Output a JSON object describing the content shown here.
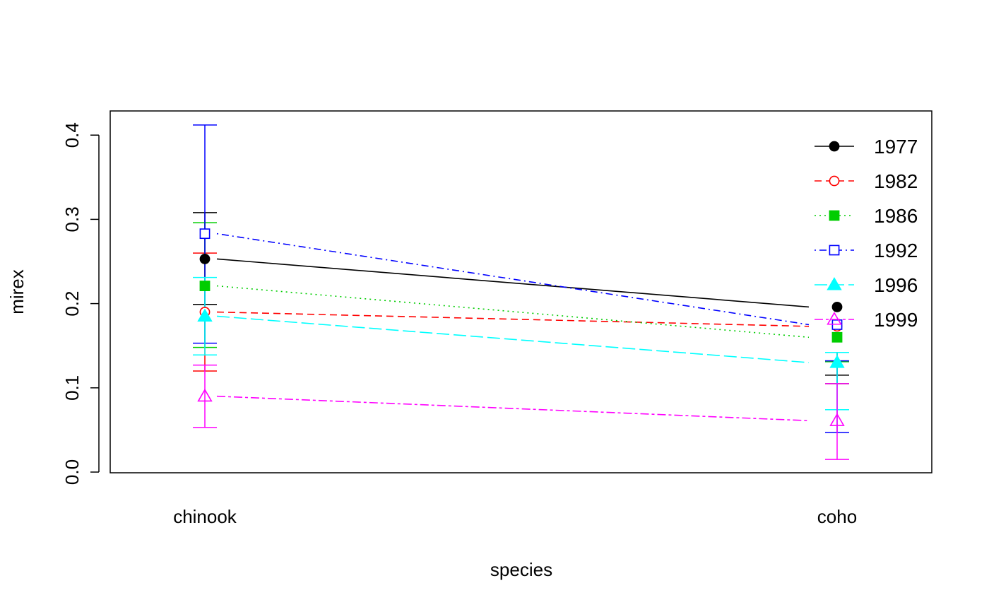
{
  "chart_data": {
    "type": "line",
    "title": "",
    "xlabel": "species",
    "ylabel": "mirex",
    "categories": [
      "chinook",
      "coho"
    ],
    "ylim": [
      0,
      0.43
    ],
    "yticks": [
      "0.0",
      "0.1",
      "0.2",
      "0.3",
      "0.4"
    ],
    "yticks_values": [
      0.0,
      0.1,
      0.2,
      0.3,
      0.4
    ],
    "grid": false,
    "legend_position": "top-right",
    "series": [
      {
        "name": "1977",
        "color": "#000000",
        "marker": "filled-circle",
        "line": "solid",
        "values": [
          0.253,
          0.196
        ],
        "err_low": [
          0.199,
          0.115
        ],
        "err_high": [
          0.308,
          0.142
        ]
      },
      {
        "name": "1982",
        "color": "#ff0000",
        "marker": "open-circle",
        "line": "dashed",
        "values": [
          0.19,
          0.173
        ],
        "err_low": [
          0.12,
          0.105
        ],
        "err_high": [
          0.26,
          0.132
        ]
      },
      {
        "name": "1986",
        "color": "#00cd00",
        "marker": "filled-square",
        "line": "dotted",
        "values": [
          0.221,
          0.16
        ],
        "err_low": [
          0.148,
          0.105
        ],
        "err_high": [
          0.296,
          0.131
        ]
      },
      {
        "name": "1992",
        "color": "#0000ff",
        "marker": "open-square",
        "line": "dotdash",
        "values": [
          0.283,
          0.175
        ],
        "err_low": [
          0.153,
          0.047
        ],
        "err_high": [
          0.412,
          0.132
        ]
      },
      {
        "name": "1996",
        "color": "#00ffff",
        "marker": "filled-triangle",
        "line": "longdash",
        "values": [
          0.185,
          0.13
        ],
        "err_low": [
          0.139,
          0.074
        ],
        "err_high": [
          0.231,
          0.142
        ]
      },
      {
        "name": "1999",
        "color": "#ff00ff",
        "marker": "open-triangle",
        "line": "twodash",
        "values": [
          0.09,
          0.061
        ],
        "err_low": [
          0.053,
          0.015
        ],
        "err_high": [
          0.127,
          0.105
        ]
      }
    ]
  }
}
